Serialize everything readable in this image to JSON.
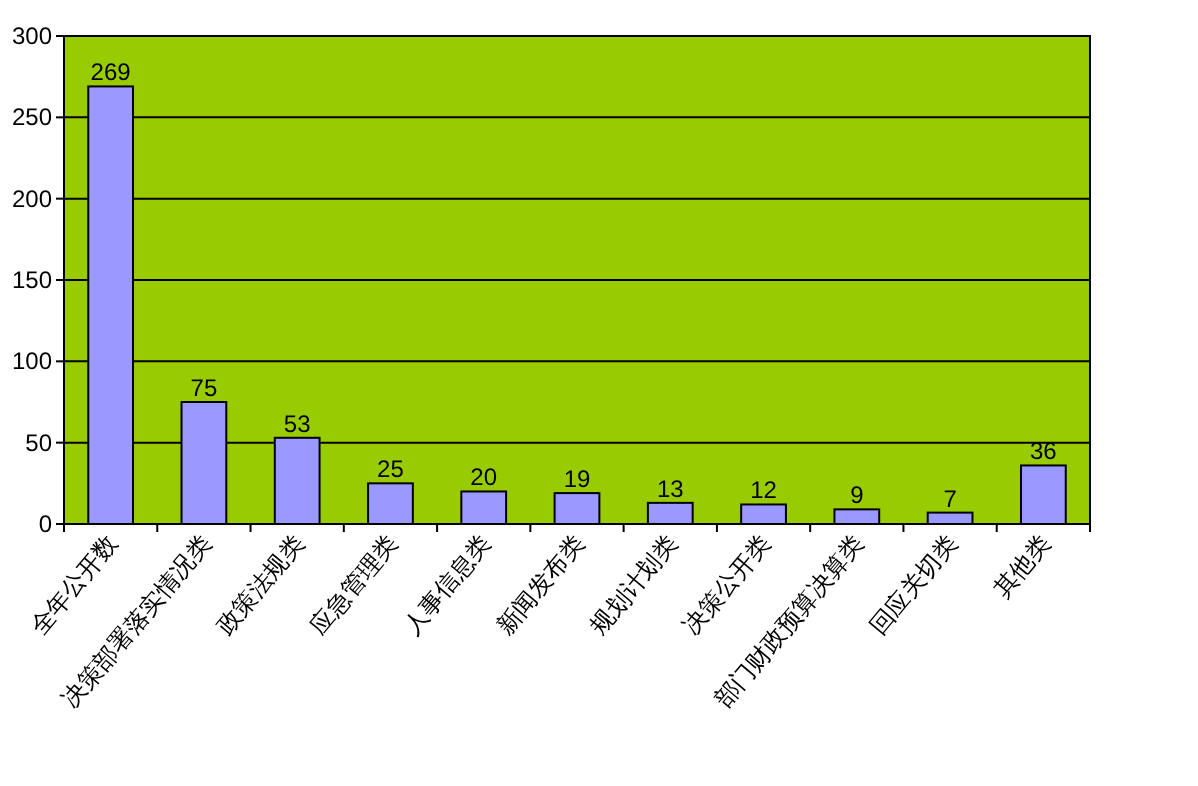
{
  "chart_data": {
    "type": "bar",
    "categories": [
      "全年公开数",
      "决策部署落实情况类",
      "政策法规类",
      "应急管理类",
      "人事信息类",
      "新闻发布类",
      "规划计划类",
      "决策公开类",
      "部门财政预算决算类",
      "回应关切类",
      "其他类"
    ],
    "values": [
      269,
      75,
      53,
      25,
      20,
      19,
      13,
      12,
      9,
      7,
      36
    ],
    "color": "#9999ff",
    "ylim": [
      0,
      300
    ],
    "yticks": [
      0,
      50,
      100,
      150,
      200,
      250,
      300
    ],
    "grid": "y",
    "data_labels": true
  }
}
